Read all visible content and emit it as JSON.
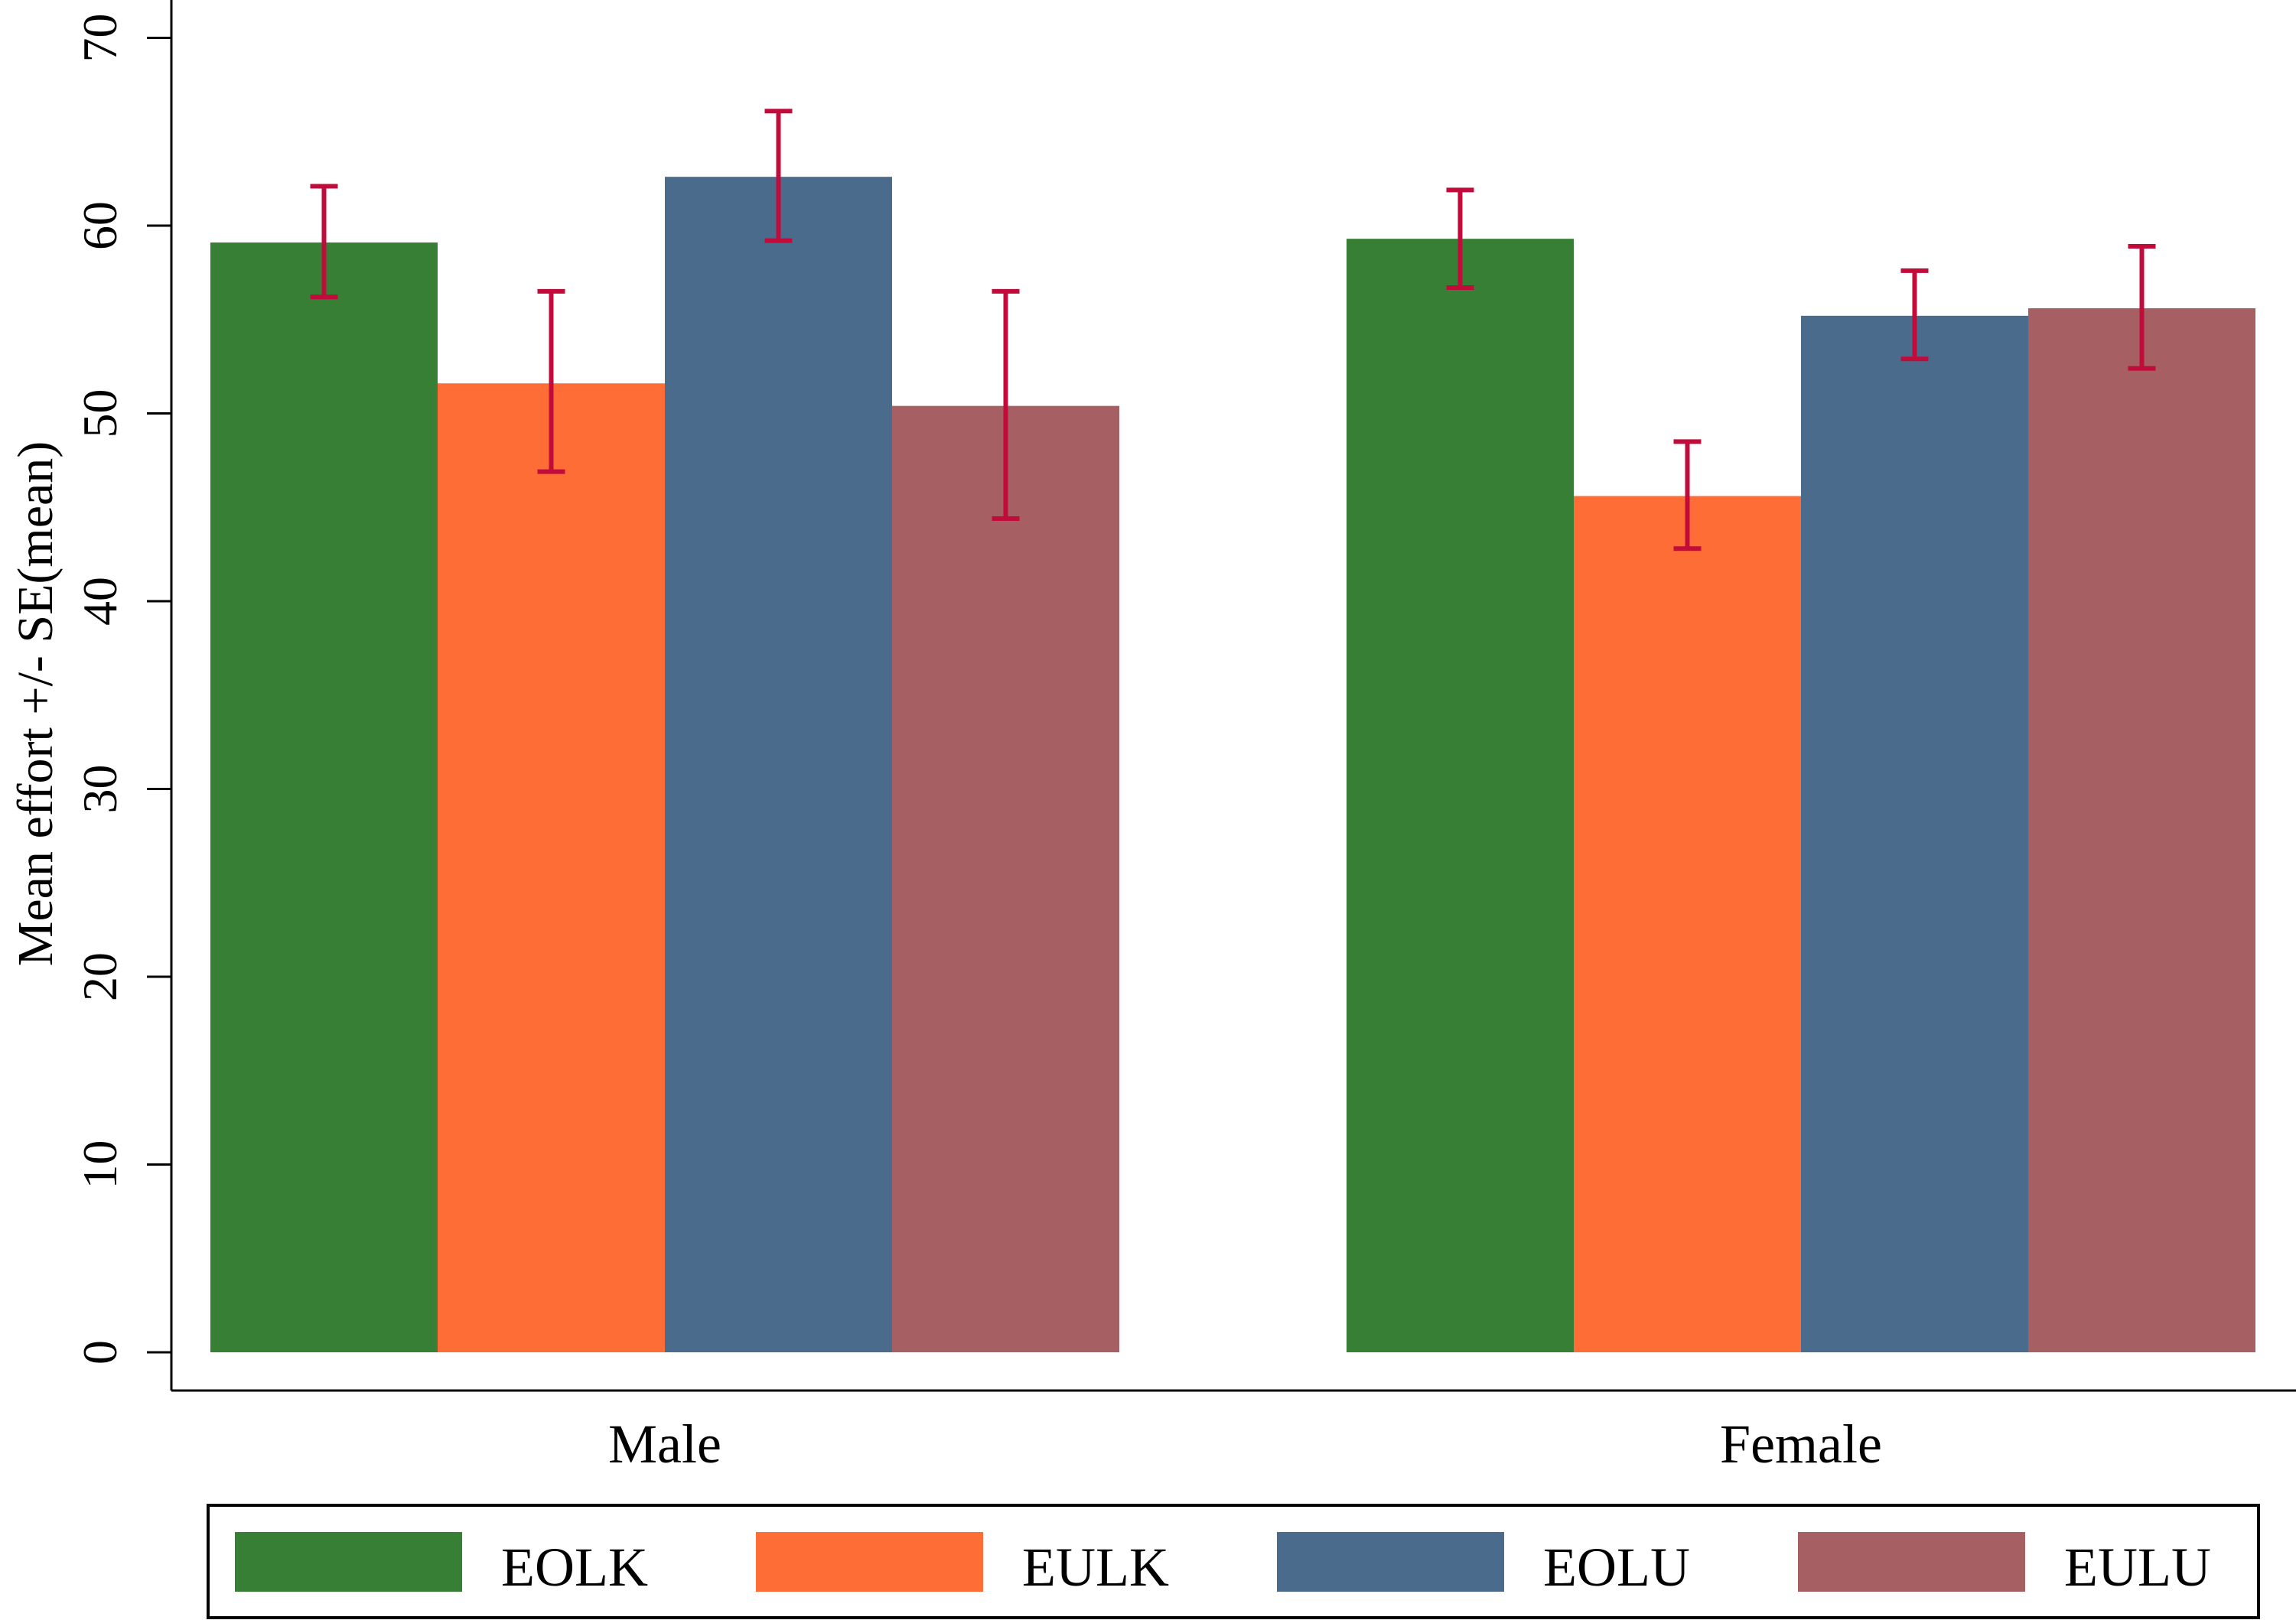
{
  "chart_data": {
    "type": "bar",
    "title": "",
    "xlabel": "",
    "ylabel": "Mean effort +/- SE(mean)",
    "ylim": [
      0,
      70
    ],
    "yticks": [
      0,
      10,
      20,
      30,
      40,
      50,
      60,
      70
    ],
    "yticks_text": [
      "0",
      "10",
      "20",
      "30",
      "40",
      "50",
      "60",
      "70"
    ],
    "grid": false,
    "legend_position": "bottom",
    "categories": [
      "Male",
      "Female"
    ],
    "series": [
      {
        "name": "EOLK",
        "color": "#367f35",
        "values": [
          59.1,
          59.3
        ],
        "se_low": [
          56.2,
          56.7
        ],
        "se_high": [
          62.1,
          61.9
        ]
      },
      {
        "name": "EULK",
        "color": "#fe6d35",
        "values": [
          51.6,
          45.6
        ],
        "se_low": [
          46.9,
          42.8
        ],
        "se_high": [
          56.5,
          48.5
        ]
      },
      {
        "name": "EOLU",
        "color": "#4a6b8c",
        "values": [
          62.6,
          55.2
        ],
        "se_low": [
          59.2,
          52.9
        ],
        "se_high": [
          66.1,
          57.6
        ]
      },
      {
        "name": "EULU",
        "color": "#a65f62",
        "values": [
          50.4,
          55.6
        ],
        "se_low": [
          44.4,
          52.4
        ],
        "se_high": [
          56.5,
          58.9
        ]
      }
    ],
    "error_bar_color": "#c10c3b"
  }
}
